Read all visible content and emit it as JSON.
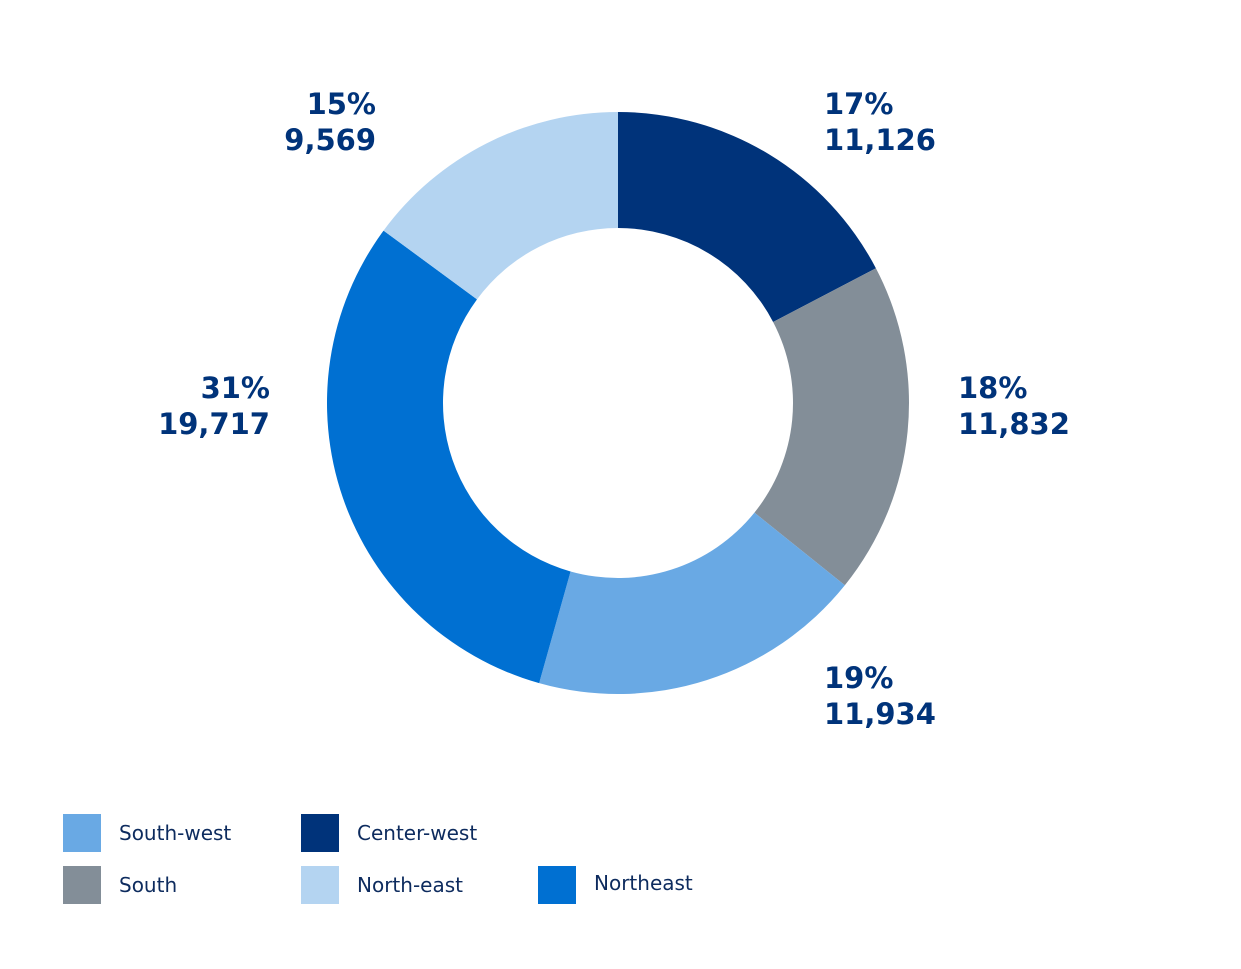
{
  "chart_data": {
    "type": "pie",
    "variant": "donut",
    "slices": [
      {
        "name": "Center-west",
        "percent_label": "17%",
        "value_label": "11,126",
        "value": 11126,
        "color": "#00337a"
      },
      {
        "name": "South",
        "percent_label": "18%",
        "value_label": "11,832",
        "value": 11832,
        "color": "#838e98"
      },
      {
        "name": "South-west",
        "percent_label": "19%",
        "value_label": "11,934",
        "value": 11934,
        "color": "#69a9e4"
      },
      {
        "name": "Northeast",
        "percent_label": "31%",
        "value_label": "19,717",
        "value": 19717,
        "color": "#0070d2"
      },
      {
        "name": "North-east",
        "percent_label": "15%",
        "value_label": "9,569",
        "value": 9569,
        "color": "#b4d4f1"
      }
    ],
    "legend": {
      "placement": "bottom-left",
      "items": [
        {
          "label": "South-west",
          "color": "#69a9e4"
        },
        {
          "label": "Center-west",
          "color": "#00337a"
        },
        {
          "label": "South",
          "color": "#838e98"
        },
        {
          "label": "North-east",
          "color": "#b4d4f1"
        },
        {
          "label": "Northeast",
          "color": "#0070d2"
        }
      ]
    },
    "label_color": "#00337a"
  }
}
